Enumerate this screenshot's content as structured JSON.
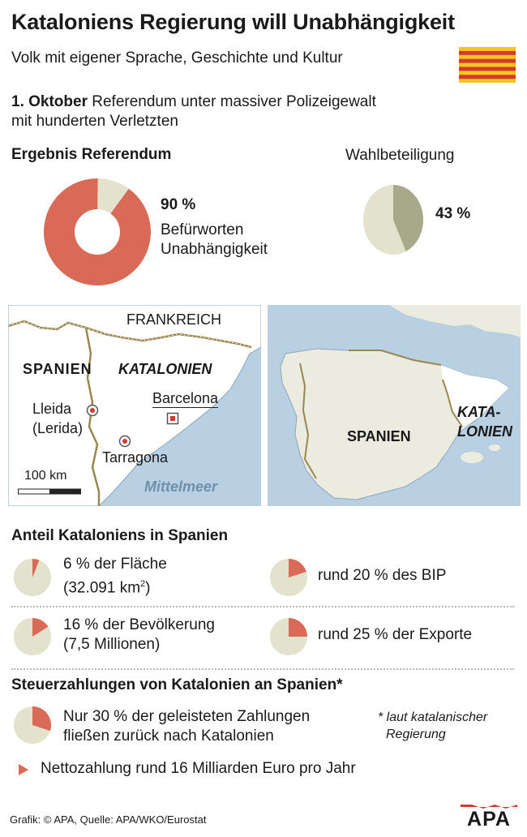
{
  "header": {
    "title": "Kataloniens Regierung will Unabhängigkeit",
    "subtitle": "Volk mit eigener Sprache, Geschichte und Kultur",
    "date_bold": "1. Oktober",
    "intro_text": " Referendum unter massiver Polizeigewalt",
    "intro_line2": "mit hunderten Verletzten"
  },
  "colors": {
    "accent": "#d86a57",
    "pale": "#e3e2cc",
    "olive": "#a8a88a",
    "sea": "#b9d0e2",
    "land": "#ffffff",
    "land2": "#ecebe0",
    "border": "#9a8750"
  },
  "referendum": {
    "heading": "Ergebnis Referendum",
    "value_label": "90 %",
    "line1": "Befürworten",
    "line2": "Unabhängigkeit"
  },
  "turnout": {
    "heading": "Wahlbeteiligung",
    "value_label": "43 %"
  },
  "chart_data": [
    {
      "type": "pie",
      "title": "Ergebnis Referendum",
      "categories": [
        "Befürworten Unabhängigkeit",
        "Rest"
      ],
      "values": [
        90,
        10
      ],
      "style": "donut"
    },
    {
      "type": "pie",
      "title": "Wahlbeteiligung",
      "categories": [
        "Wahlbeteiligung",
        "Rest"
      ],
      "values": [
        43,
        57
      ]
    },
    {
      "type": "pie",
      "title": "Anteil Kataloniens in Spanien",
      "categories": [
        "6 % der Fläche",
        "rund 20 % des BIP",
        "16 % der Bevölkerung",
        "rund 25 % der Exporte"
      ],
      "values": [
        6,
        20,
        16,
        25
      ]
    },
    {
      "type": "pie",
      "title": "Steuerzahlungen von Katalonien an Spanien",
      "categories": [
        "Nur 30 % der geleisteten Zahlungen fließen zurück nach Katalonien"
      ],
      "values": [
        30
      ]
    }
  ],
  "map_left": {
    "frankreich": "FRANKREICH",
    "spanien": "SPANIEN",
    "katalonien": "KATALONIEN",
    "lleida": "Lleida",
    "lerida": "(Lerida)",
    "barcelona": "Barcelona",
    "tarragona": "Tarragona",
    "scale": "100 km",
    "sea": "Mittelmeer"
  },
  "map_right": {
    "spanien": "SPANIEN",
    "kata": "KATA-",
    "lonien": "LONIEN"
  },
  "share": {
    "heading": "Anteil Kataloniens in Spanien",
    "area_line1": "6 % der Fläche",
    "area_line2": "(32.091 km",
    "area_sup": "2",
    "area_close": ")",
    "gdp": "rund 20 % des BIP",
    "pop_line1": "16 % der Bevölkerung",
    "pop_line2": "(7,5 Millionen)",
    "exports": "rund 25 % der Exporte"
  },
  "tax": {
    "heading": "Steuerzahlungen von Katalonien an Spanien*",
    "line1": "Nur 30 % der geleisteten Zahlungen",
    "line2": "fließen zurück nach Katalonien",
    "note1": "* laut katalanischer",
    "note2": "Regierung",
    "net": "Nettozahlung rund 16 Milliarden Euro pro Jahr"
  },
  "footer": {
    "credit": "Grafik: © APA, Quelle: APA/WKO/Eurostat",
    "logo": "APA"
  }
}
